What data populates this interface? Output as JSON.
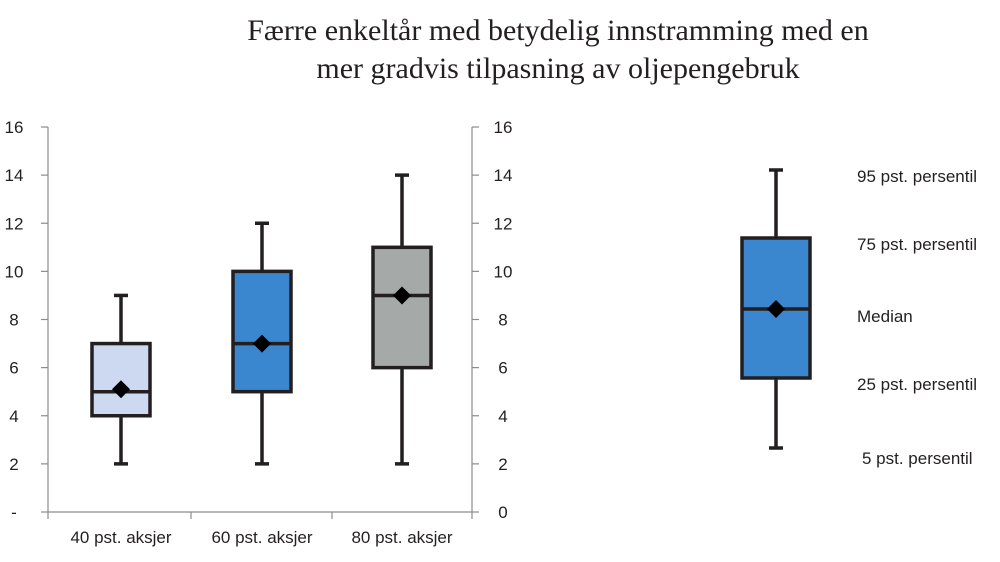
{
  "chart_data": {
    "type": "box",
    "title_lines": [
      "Færre enkeltår med betydelig innstramming med en",
      "mer gradvis tilpasning av oljepengebruk"
    ],
    "ylim": [
      0,
      16
    ],
    "yticks_left": [
      "-",
      "2",
      "4",
      "6",
      "8",
      "10",
      "12",
      "14",
      "16"
    ],
    "yticks_right": [
      "0",
      "2",
      "4",
      "6",
      "8",
      "10",
      "12",
      "14",
      "16"
    ],
    "ytick_values": [
      0,
      2,
      4,
      6,
      8,
      10,
      12,
      14,
      16
    ],
    "categories": [
      "40 pst. aksjer",
      "60 pst. aksjer",
      "80 pst. aksjer"
    ],
    "boxes": [
      {
        "p5": 2,
        "p25": 4,
        "median": 5,
        "p75": 7,
        "p95": 9,
        "mean": 5.1,
        "color": "#cdd9f1"
      },
      {
        "p5": 2,
        "p25": 5,
        "median": 7,
        "p75": 10,
        "p95": 12,
        "mean": 7,
        "color": "#3a87cf"
      },
      {
        "p5": 2,
        "p25": 6,
        "median": 9,
        "p75": 11,
        "p95": 14,
        "mean": 9,
        "color": "#a5a9a8"
      }
    ],
    "legend": {
      "labels": {
        "p95": "95 pst. persentil",
        "p75": "75 pst. persentil",
        "median": "Median",
        "p25": "25 pst. persentil",
        "p5": "5 pst. persentil"
      },
      "color": "#3a87cf"
    }
  }
}
